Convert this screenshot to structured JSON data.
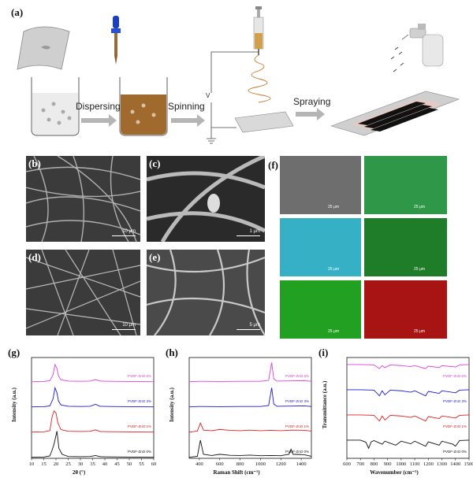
{
  "colors": {
    "pvdf_zno_5": "#e040e0",
    "pvdf_zno_3": "#1a1adc",
    "pvdf_zno_1": "#e02020",
    "pvdf_zno_0": "#111111"
  },
  "panel_a": {
    "letter": "(a)",
    "steps": [
      "Dispersing",
      "Spinning",
      "Spraying"
    ],
    "voltage": "V"
  },
  "sem_panels": [
    {
      "letter": "(b)",
      "scale": "10 μm"
    },
    {
      "letter": "(c)",
      "scale": "1 μm"
    },
    {
      "letter": "(d)",
      "scale": "10 μm"
    },
    {
      "letter": "(e)",
      "scale": "5 μm"
    }
  ],
  "panel_f": {
    "letter": "(f)",
    "maps": [
      {
        "scale": "25 μm",
        "color": "#8a8a8a"
      },
      {
        "scale": "25 μm",
        "color": "#2fa84a"
      },
      {
        "scale": "25 μm",
        "color": "#36b7c8"
      },
      {
        "scale": "25 μm",
        "color": "#1f8a2a"
      },
      {
        "scale": "25 μm",
        "color": "#22aa22"
      },
      {
        "scale": "25 μm",
        "color": "#c01818"
      }
    ]
  },
  "chart_data": [
    {
      "type": "line",
      "letter": "(g)",
      "xlabel": "2θ (°)",
      "ylabel": "Intensity (a.u.)",
      "xlim": [
        10,
        60
      ],
      "xticks": [
        "10",
        "15",
        "20",
        "25",
        "30",
        "35",
        "40",
        "45",
        "50",
        "55",
        "60"
      ],
      "series": [
        {
          "name": "PVDF-ZnO 5%",
          "color": "#e040e0",
          "x": [
            10,
            15,
            17.5,
            18.8,
            19.6,
            20.4,
            21.0,
            22,
            25,
            30,
            34,
            36.2,
            38,
            42,
            50,
            60
          ],
          "y": [
            0.05,
            0.06,
            0.1,
            0.4,
            0.9,
            0.7,
            0.35,
            0.15,
            0.08,
            0.07,
            0.08,
            0.16,
            0.08,
            0.07,
            0.06,
            0.05
          ]
        },
        {
          "name": "PVDF-ZnO 3%",
          "color": "#1a1adc",
          "x": [
            10,
            15,
            17.5,
            18.8,
            19.6,
            20.4,
            21.0,
            22,
            25,
            30,
            34,
            36.2,
            38,
            42,
            50,
            60
          ],
          "y": [
            0.05,
            0.06,
            0.1,
            0.45,
            1.0,
            0.75,
            0.35,
            0.15,
            0.08,
            0.07,
            0.08,
            0.18,
            0.08,
            0.07,
            0.06,
            0.05
          ]
        },
        {
          "name": "PVDF-ZnO 1%",
          "color": "#e02020",
          "x": [
            10,
            15,
            17.5,
            18.4,
            19.2,
            20.0,
            20.8,
            22,
            25,
            30,
            34,
            36.2,
            38,
            42,
            50,
            60
          ],
          "y": [
            0.05,
            0.06,
            0.12,
            0.8,
            1.1,
            1.0,
            0.5,
            0.18,
            0.09,
            0.08,
            0.09,
            0.16,
            0.08,
            0.07,
            0.06,
            0.05
          ]
        },
        {
          "name": "PVDF-ZnO 0%",
          "color": "#111111",
          "x": [
            10,
            15,
            17.5,
            18.4,
            19.2,
            20.4,
            21.2,
            22.5,
            25,
            30,
            34,
            36.2,
            38,
            42,
            50,
            60
          ],
          "y": [
            0.05,
            0.06,
            0.12,
            0.4,
            0.7,
            1.35,
            0.5,
            0.2,
            0.09,
            0.08,
            0.09,
            0.14,
            0.08,
            0.07,
            0.06,
            0.05
          ]
        }
      ]
    },
    {
      "type": "line",
      "letter": "(h)",
      "xlabel": "Raman Shift (cm⁻¹)",
      "ylabel": "Intensity (a.u.)",
      "xlim": [
        300,
        1500
      ],
      "xticks": [
        "400",
        "600",
        "800",
        "1000",
        "1200",
        "1400"
      ],
      "series": [
        {
          "name": "PVDF-ZnO 5%",
          "color": "#e040e0",
          "x": [
            300,
            400,
            600,
            800,
            1000,
            1080,
            1110,
            1130,
            1160,
            1300,
            1430,
            1500
          ],
          "y": [
            0.05,
            0.07,
            0.06,
            0.07,
            0.07,
            0.12,
            1.0,
            0.2,
            0.08,
            0.09,
            0.1,
            0.07
          ]
        },
        {
          "name": "PVDF-ZnO 3%",
          "color": "#1a1adc",
          "x": [
            300,
            400,
            600,
            800,
            1000,
            1080,
            1110,
            1130,
            1160,
            1300,
            1430,
            1500
          ],
          "y": [
            0.05,
            0.07,
            0.06,
            0.07,
            0.07,
            0.12,
            1.0,
            0.2,
            0.08,
            0.09,
            0.1,
            0.07
          ]
        },
        {
          "name": "PVDF-ZnO 1%",
          "color": "#e02020",
          "x": [
            300,
            380,
            410,
            440,
            520,
            600,
            700,
            800,
            900,
            1000,
            1100,
            1200,
            1300,
            1430,
            1500
          ],
          "y": [
            0.05,
            0.1,
            0.5,
            0.15,
            0.12,
            0.18,
            0.14,
            0.12,
            0.15,
            0.12,
            0.14,
            0.12,
            0.15,
            0.14,
            0.1
          ]
        },
        {
          "name": "PVDF-ZnO 0%",
          "color": "#111111",
          "x": [
            300,
            380,
            410,
            440,
            520,
            600,
            700,
            800,
            900,
            1000,
            1100,
            1200,
            1280,
            1300,
            1320,
            1430,
            1500
          ],
          "y": [
            0.05,
            0.1,
            0.9,
            0.2,
            0.14,
            0.2,
            0.15,
            0.14,
            0.16,
            0.13,
            0.14,
            0.13,
            0.2,
            0.45,
            0.2,
            0.18,
            0.1
          ]
        }
      ]
    },
    {
      "type": "line",
      "letter": "(i)",
      "xlabel": "Wavenumber (cm⁻¹)",
      "ylabel": "Transmittance (a.u.)",
      "xlim": [
        600,
        1500
      ],
      "xticks": [
        "600",
        "700",
        "800",
        "900",
        "1000",
        "1100",
        "1200",
        "1300",
        "1400",
        "1500"
      ],
      "series": [
        {
          "name": "PVDF-ZnO 5%",
          "color": "#e040e0",
          "x": [
            600,
            700,
            800,
            840,
            860,
            880,
            920,
            1000,
            1070,
            1100,
            1180,
            1200,
            1280,
            1300,
            1400,
            1430,
            1500
          ],
          "y": [
            0.9,
            0.9,
            0.88,
            0.7,
            0.85,
            0.75,
            0.88,
            0.85,
            0.8,
            0.85,
            0.7,
            0.82,
            0.75,
            0.85,
            0.78,
            0.88,
            0.9
          ]
        },
        {
          "name": "PVDF-ZnO 3%",
          "color": "#1a1adc",
          "x": [
            600,
            700,
            800,
            840,
            860,
            880,
            920,
            1000,
            1070,
            1100,
            1180,
            1200,
            1280,
            1300,
            1400,
            1430,
            1500
          ],
          "y": [
            0.9,
            0.9,
            0.88,
            0.6,
            0.85,
            0.65,
            0.88,
            0.85,
            0.78,
            0.85,
            0.6,
            0.82,
            0.72,
            0.85,
            0.75,
            0.88,
            0.9
          ]
        },
        {
          "name": "PVDF-ZnO 1%",
          "color": "#e02020",
          "x": [
            600,
            700,
            800,
            840,
            860,
            880,
            920,
            1000,
            1070,
            1100,
            1180,
            1200,
            1280,
            1300,
            1400,
            1430,
            1500
          ],
          "y": [
            0.9,
            0.9,
            0.88,
            0.6,
            0.85,
            0.65,
            0.88,
            0.85,
            0.78,
            0.85,
            0.6,
            0.82,
            0.72,
            0.85,
            0.75,
            0.88,
            0.9
          ]
        },
        {
          "name": "PVDF-ZnO 0%",
          "color": "#111111",
          "x": [
            600,
            700,
            740,
            760,
            780,
            800,
            860,
            880,
            900,
            960,
            1000,
            1070,
            1100,
            1180,
            1200,
            1280,
            1300,
            1380,
            1400,
            1430,
            1500
          ],
          "y": [
            0.9,
            0.9,
            0.8,
            0.5,
            0.82,
            0.88,
            0.7,
            0.85,
            0.8,
            0.65,
            0.85,
            0.72,
            0.85,
            0.6,
            0.82,
            0.65,
            0.85,
            0.7,
            0.6,
            0.88,
            0.9
          ]
        }
      ]
    }
  ]
}
